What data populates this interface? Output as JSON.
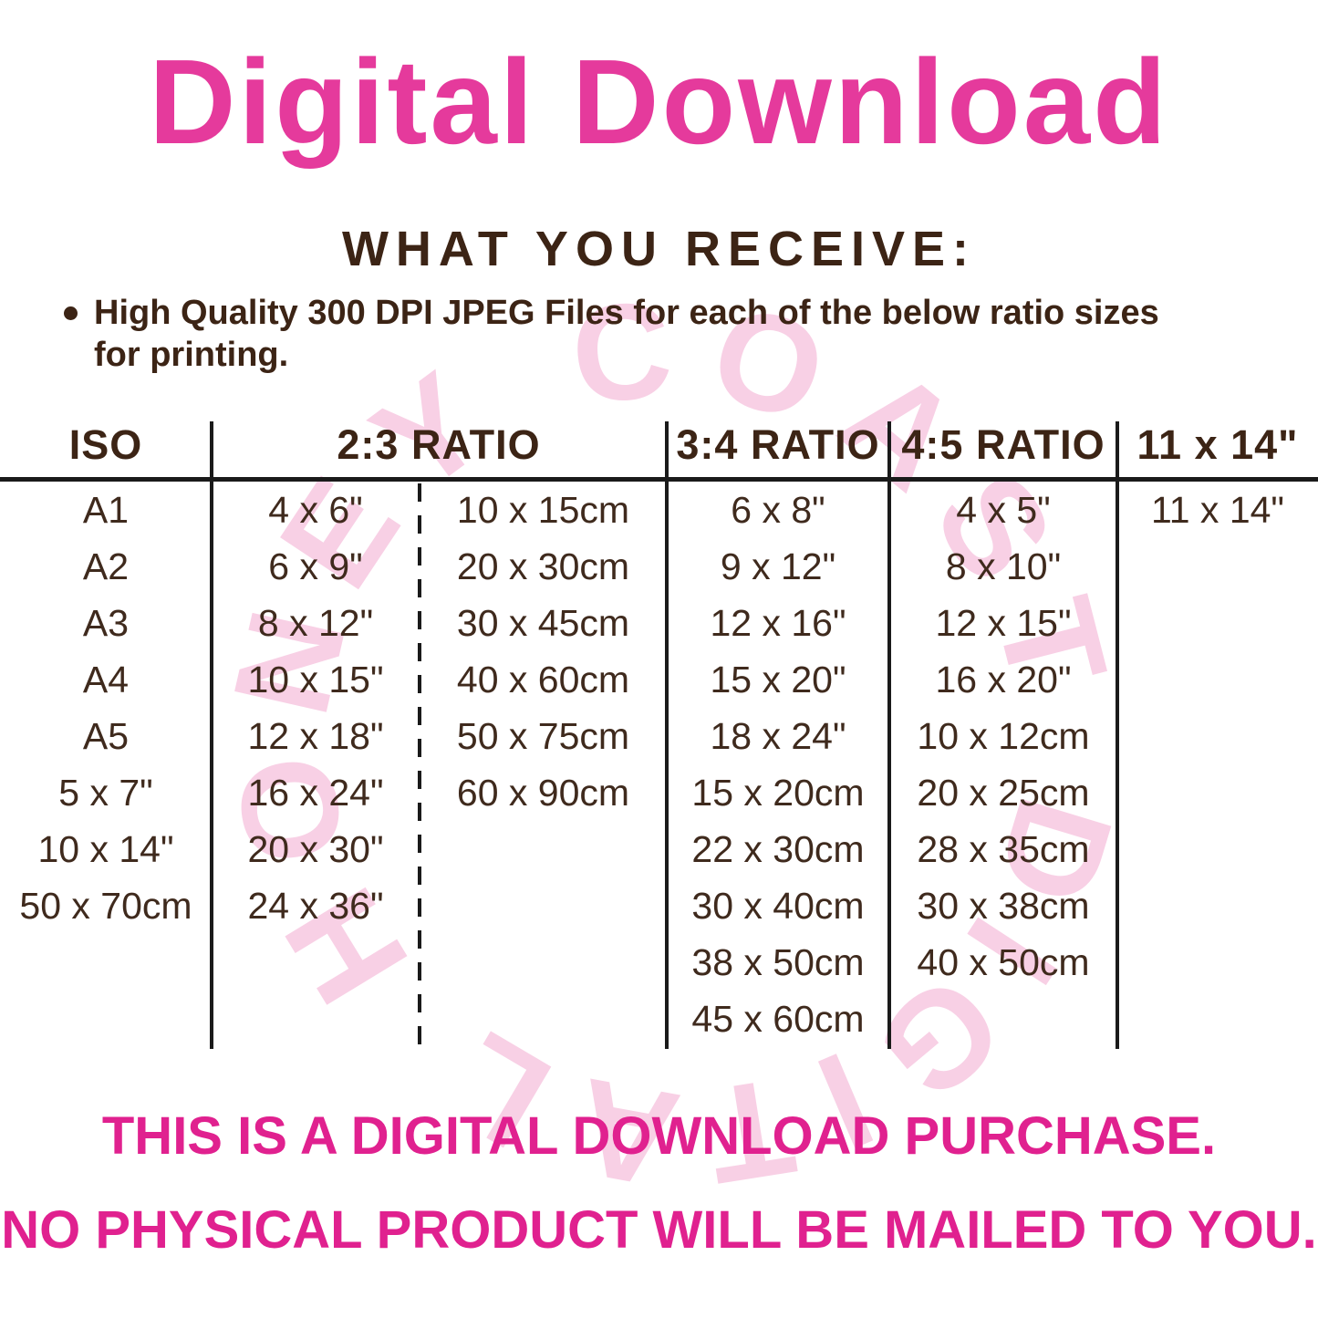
{
  "title": "Digital Download",
  "receive_heading": "WHAT YOU RECEIVE:",
  "bullet": {
    "line1": "High Quality 300 DPI JPEG Files for each of the below ratio sizes",
    "line2": "for printing."
  },
  "watermark": "HONEY COAST DIGITAL",
  "table": {
    "headers": [
      "ISO",
      "2:3 RATIO",
      "3:4 RATIO",
      "4:5 RATIO",
      "11 x 14\""
    ],
    "rows": [
      [
        "A1",
        "4 x 6\"",
        "10 x 15cm",
        "6 x 8\"",
        "4 x 5\"",
        "11 x 14\""
      ],
      [
        "A2",
        "6 x 9\"",
        "20 x 30cm",
        "9 x 12\"",
        "8 x 10\"",
        ""
      ],
      [
        "A3",
        "8 x 12\"",
        "30 x 45cm",
        "12 x 16\"",
        "12 x 15\"",
        ""
      ],
      [
        "A4",
        "10 x 15\"",
        "40 x 60cm",
        "15 x 20\"",
        "16 x 20\"",
        ""
      ],
      [
        "A5",
        "12 x 18\"",
        "50 x 75cm",
        "18 x 24\"",
        "10 x 12cm",
        ""
      ],
      [
        "5 x 7\"",
        "16 x 24\"",
        "60 x 90cm",
        "15 x 20cm",
        "20 x 25cm",
        ""
      ],
      [
        "10 x 14\"",
        "20 x 30\"",
        "",
        "22 x 30cm",
        "28 x 35cm",
        ""
      ],
      [
        "50 x 70cm",
        "24 x 36\"",
        "",
        "30 x 40cm",
        "30 x 38cm",
        ""
      ],
      [
        "",
        "",
        "",
        "38 x 50cm",
        "40 x 50cm",
        ""
      ],
      [
        "",
        "",
        "",
        "45 x 60cm",
        "",
        ""
      ]
    ]
  },
  "footer": {
    "line1": "THIS IS A DIGITAL DOWNLOAD PURCHASE.",
    "line2": "NO PHYSICAL PRODUCT WILL BE MAILED TO YOU."
  },
  "colors": {
    "title_pink": "#E53A9C",
    "footer_pink": "#E0218F",
    "heading_brown": "#3C2415",
    "table_text_brown": "#3F2A1D",
    "table_line": "#1A1A1A",
    "watermark_pink": "#F8D0E5"
  }
}
